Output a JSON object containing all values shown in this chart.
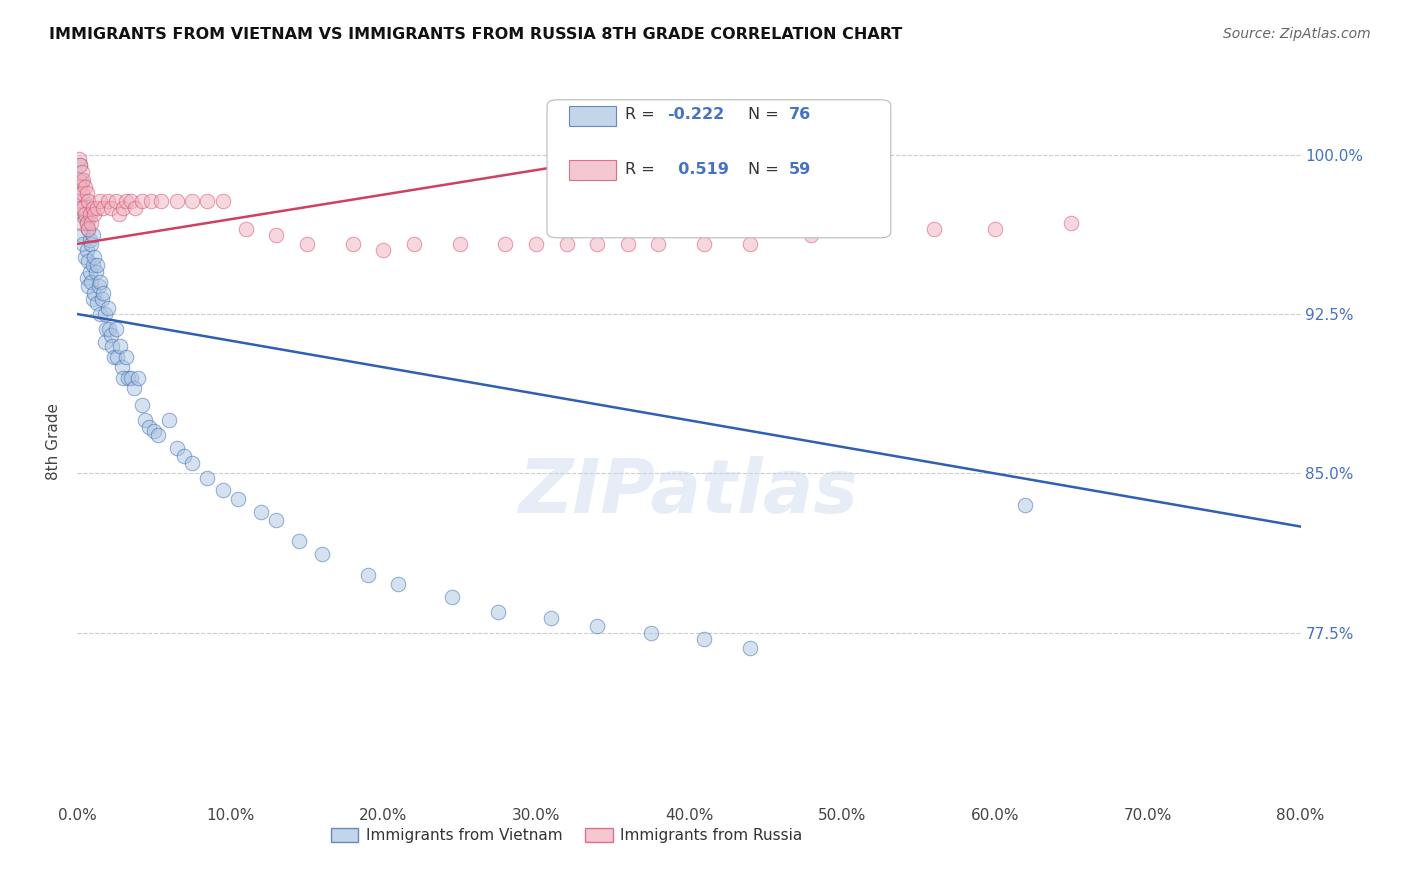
{
  "title": "IMMIGRANTS FROM VIETNAM VS IMMIGRANTS FROM RUSSIA 8TH GRADE CORRELATION CHART",
  "source": "Source: ZipAtlas.com",
  "ylabel": "8th Grade",
  "y_tick_labels_right": [
    "100.0%",
    "92.5%",
    "85.0%",
    "77.5%"
  ],
  "y_tick_values_right": [
    1.0,
    0.925,
    0.85,
    0.775
  ],
  "x_min": 0.0,
  "x_max": 0.8,
  "y_min": 0.695,
  "y_max": 1.035,
  "legend_labels": [
    "Immigrants from Vietnam",
    "Immigrants from Russia"
  ],
  "color_vietnam": "#aac4e0",
  "color_russia": "#f0b0be",
  "trendline_vietnam_color": "#3060b0",
  "trendline_russia_color": "#d04060",
  "watermark": "ZIPatlas",
  "background_color": "#ffffff",
  "grid_color": "#cccccc",
  "trendline_viet_x0": 0.0,
  "trendline_viet_y0": 0.925,
  "trendline_viet_x1": 0.8,
  "trendline_viet_y1": 0.825,
  "trendline_russ_x0": 0.0,
  "trendline_russ_y0": 0.958,
  "trendline_russ_x1": 0.38,
  "trendline_russ_y1": 1.002,
  "vietnam_x": [
    0.002,
    0.002,
    0.003,
    0.003,
    0.004,
    0.004,
    0.005,
    0.005,
    0.006,
    0.006,
    0.006,
    0.007,
    0.007,
    0.007,
    0.008,
    0.008,
    0.009,
    0.009,
    0.01,
    0.01,
    0.01,
    0.011,
    0.011,
    0.012,
    0.013,
    0.013,
    0.014,
    0.015,
    0.015,
    0.016,
    0.017,
    0.018,
    0.018,
    0.019,
    0.02,
    0.021,
    0.022,
    0.023,
    0.024,
    0.025,
    0.026,
    0.028,
    0.029,
    0.03,
    0.032,
    0.033,
    0.035,
    0.037,
    0.04,
    0.042,
    0.044,
    0.047,
    0.05,
    0.053,
    0.06,
    0.065,
    0.07,
    0.075,
    0.085,
    0.095,
    0.105,
    0.12,
    0.13,
    0.145,
    0.16,
    0.19,
    0.21,
    0.245,
    0.275,
    0.31,
    0.34,
    0.375,
    0.41,
    0.44,
    0.62
  ],
  "vietnam_y": [
    0.995,
    0.972,
    0.987,
    0.962,
    0.978,
    0.958,
    0.97,
    0.952,
    0.968,
    0.955,
    0.942,
    0.965,
    0.95,
    0.938,
    0.96,
    0.945,
    0.958,
    0.94,
    0.962,
    0.948,
    0.932,
    0.952,
    0.935,
    0.945,
    0.948,
    0.93,
    0.938,
    0.94,
    0.925,
    0.932,
    0.935,
    0.925,
    0.912,
    0.918,
    0.928,
    0.918,
    0.915,
    0.91,
    0.905,
    0.918,
    0.905,
    0.91,
    0.9,
    0.895,
    0.905,
    0.895,
    0.895,
    0.89,
    0.895,
    0.882,
    0.875,
    0.872,
    0.87,
    0.868,
    0.875,
    0.862,
    0.858,
    0.855,
    0.848,
    0.842,
    0.838,
    0.832,
    0.828,
    0.818,
    0.812,
    0.802,
    0.798,
    0.792,
    0.785,
    0.782,
    0.778,
    0.775,
    0.772,
    0.768,
    0.835
  ],
  "russia_x": [
    0.001,
    0.001,
    0.001,
    0.002,
    0.002,
    0.002,
    0.003,
    0.003,
    0.003,
    0.004,
    0.004,
    0.005,
    0.005,
    0.006,
    0.006,
    0.007,
    0.007,
    0.008,
    0.009,
    0.01,
    0.011,
    0.013,
    0.015,
    0.017,
    0.02,
    0.022,
    0.025,
    0.027,
    0.03,
    0.032,
    0.035,
    0.038,
    0.042,
    0.048,
    0.055,
    0.065,
    0.075,
    0.085,
    0.095,
    0.11,
    0.13,
    0.15,
    0.18,
    0.2,
    0.22,
    0.25,
    0.28,
    0.3,
    0.32,
    0.34,
    0.36,
    0.38,
    0.41,
    0.44,
    0.48,
    0.52,
    0.56,
    0.6,
    0.65
  ],
  "russia_y": [
    0.998,
    0.988,
    0.978,
    0.995,
    0.985,
    0.975,
    0.992,
    0.982,
    0.968,
    0.988,
    0.975,
    0.985,
    0.972,
    0.982,
    0.968,
    0.978,
    0.965,
    0.972,
    0.968,
    0.975,
    0.972,
    0.975,
    0.978,
    0.975,
    0.978,
    0.975,
    0.978,
    0.972,
    0.975,
    0.978,
    0.978,
    0.975,
    0.978,
    0.978,
    0.978,
    0.978,
    0.978,
    0.978,
    0.978,
    0.965,
    0.962,
    0.958,
    0.958,
    0.955,
    0.958,
    0.958,
    0.958,
    0.958,
    0.958,
    0.958,
    0.958,
    0.958,
    0.958,
    0.958,
    0.962,
    0.965,
    0.965,
    0.965,
    0.968
  ]
}
